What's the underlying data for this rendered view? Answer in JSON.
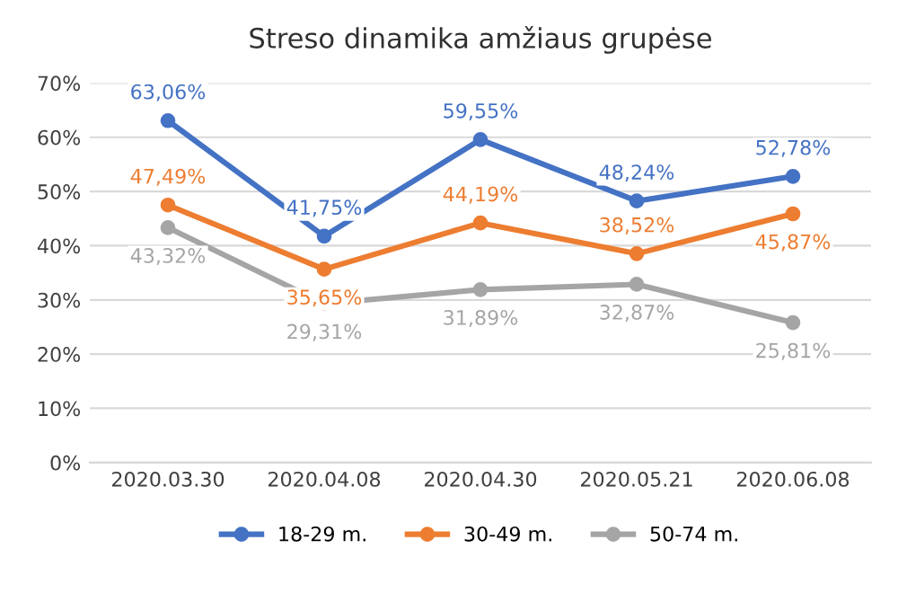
{
  "chart_data": {
    "type": "line",
    "title": "Streso dinamika amžiaus grupėse",
    "categories": [
      "2020.03.30",
      "2020.04.08",
      "2020.04.30",
      "2020.05.21",
      "2020.06.08"
    ],
    "series": [
      {
        "name": "18-29 m.",
        "color": "#4472c4",
        "values": [
          63.06,
          41.75,
          59.55,
          48.24,
          52.78
        ],
        "value_labels": [
          "63,06%",
          "41,75%",
          "59,55%",
          "48,24%",
          "52,78%"
        ]
      },
      {
        "name": "30-49 m.",
        "color": "#ed7d31",
        "values": [
          47.49,
          35.65,
          44.19,
          38.52,
          45.87
        ],
        "value_labels": [
          "47,49%",
          "35,65%",
          "44,19%",
          "38,52%",
          "45,87%"
        ]
      },
      {
        "name": "50-74 m.",
        "color": "#a5a5a5",
        "values": [
          43.32,
          29.31,
          31.89,
          32.87,
          25.81
        ],
        "value_labels": [
          "43,32%",
          "29,31%",
          "31,89%",
          "32,87%",
          "25,81%"
        ]
      }
    ],
    "ylim": [
      0,
      70
    ],
    "yticks": [
      {
        "value": 0,
        "label": "0%"
      },
      {
        "value": 10,
        "label": "10%"
      },
      {
        "value": 20,
        "label": "20%"
      },
      {
        "value": 30,
        "label": "30%"
      },
      {
        "value": 40,
        "label": "40%"
      },
      {
        "value": 50,
        "label": "50%"
      },
      {
        "value": 60,
        "label": "60%"
      },
      {
        "value": 70,
        "label": "70%"
      }
    ],
    "grid": "y",
    "legend": "bottom",
    "marker": "circle",
    "line_style": "solid"
  }
}
